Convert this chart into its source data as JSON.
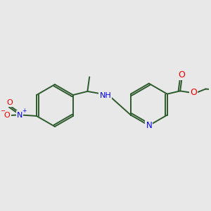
{
  "bg_color": "#e8e8e8",
  "bond_color": "#2d5a2d",
  "N_color": "#0000ee",
  "O_color": "#ee0000",
  "lw": 1.4,
  "figsize": [
    3.0,
    3.0
  ],
  "dpi": 100,
  "xlim": [
    0,
    10
  ],
  "ylim": [
    0,
    10
  ]
}
